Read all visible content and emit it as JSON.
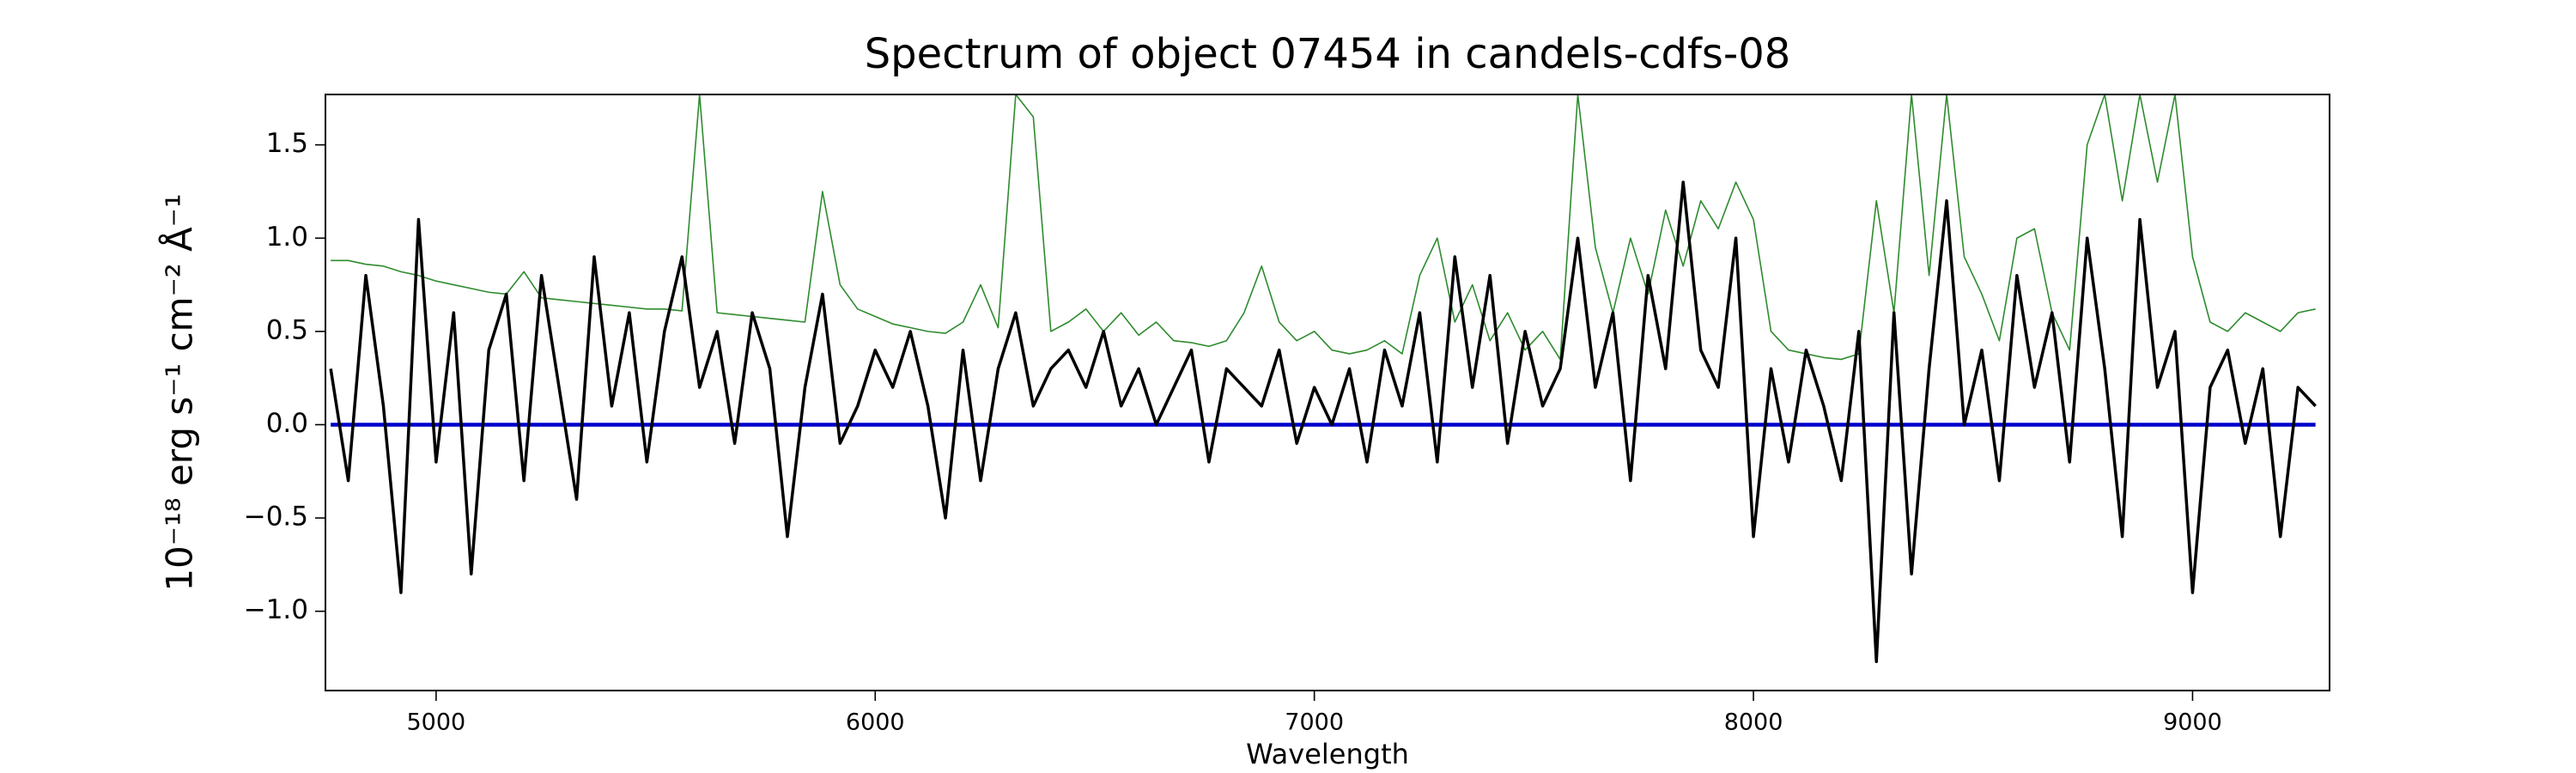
{
  "chart_data": {
    "type": "line",
    "title": "Spectrum of object 07454 in candels-cdfs-08",
    "xlabel": "Wavelength",
    "ylabel": "10⁻¹⁸ erg s⁻¹ cm⁻² Å⁻¹",
    "x": [
      4760,
      4800,
      4840,
      4880,
      4920,
      4960,
      5000,
      5040,
      5080,
      5120,
      5160,
      5200,
      5240,
      5280,
      5320,
      5360,
      5400,
      5440,
      5480,
      5520,
      5560,
      5600,
      5640,
      5680,
      5720,
      5760,
      5800,
      5840,
      5880,
      5920,
      5960,
      6000,
      6040,
      6080,
      6120,
      6160,
      6200,
      6240,
      6280,
      6320,
      6360,
      6400,
      6440,
      6480,
      6520,
      6560,
      6600,
      6640,
      6680,
      6720,
      6760,
      6800,
      6840,
      6880,
      6920,
      6960,
      7000,
      7040,
      7080,
      7120,
      7160,
      7200,
      7240,
      7280,
      7320,
      7360,
      7400,
      7440,
      7480,
      7520,
      7560,
      7600,
      7640,
      7680,
      7720,
      7760,
      7800,
      7840,
      7880,
      7920,
      7960,
      8000,
      8040,
      8080,
      8120,
      8160,
      8200,
      8240,
      8280,
      8320,
      8360,
      8400,
      8440,
      8480,
      8520,
      8560,
      8600,
      8640,
      8680,
      8720,
      8760,
      8800,
      8840,
      8880,
      8920,
      8960,
      9000,
      9040,
      9080,
      9120,
      9160,
      9200,
      9240,
      9280
    ],
    "series": [
      {
        "color": "#2e8b2e",
        "width": 1.6,
        "values": [
          0.88,
          0.88,
          0.86,
          0.85,
          0.82,
          0.8,
          0.77,
          0.75,
          0.73,
          0.71,
          0.7,
          0.82,
          0.68,
          0.67,
          0.66,
          0.65,
          0.64,
          0.63,
          0.62,
          0.62,
          0.61,
          1.77,
          0.6,
          0.59,
          0.58,
          0.57,
          0.56,
          0.55,
          1.25,
          0.75,
          0.62,
          0.58,
          0.54,
          0.52,
          0.5,
          0.49,
          0.55,
          0.75,
          0.52,
          1.77,
          1.65,
          0.5,
          0.55,
          0.62,
          0.5,
          0.6,
          0.48,
          0.55,
          0.45,
          0.44,
          0.42,
          0.45,
          0.6,
          0.85,
          0.55,
          0.45,
          0.5,
          0.4,
          0.38,
          0.4,
          0.45,
          0.38,
          0.8,
          1.0,
          0.55,
          0.75,
          0.45,
          0.6,
          0.4,
          0.5,
          0.35,
          1.77,
          0.95,
          0.6,
          1.0,
          0.7,
          1.15,
          0.85,
          1.2,
          1.05,
          1.3,
          1.1,
          0.5,
          0.4,
          0.38,
          0.36,
          0.35,
          0.38,
          1.2,
          0.6,
          1.77,
          0.8,
          1.77,
          0.9,
          0.7,
          0.45,
          1.0,
          1.05,
          0.6,
          0.4,
          1.5,
          1.77,
          1.2,
          1.77,
          1.3,
          1.77,
          0.9,
          0.55,
          0.5,
          0.6,
          0.55,
          0.5,
          0.6,
          0.62
        ]
      },
      {
        "color": "#0000cc",
        "width": 4.5,
        "values": [
          0,
          0,
          0,
          0,
          0,
          0,
          0,
          0,
          0,
          0,
          0,
          0,
          0,
          0,
          0,
          0,
          0,
          0,
          0,
          0,
          0,
          0,
          0,
          0,
          0,
          0,
          0,
          0,
          0,
          0,
          0,
          0,
          0,
          0,
          0,
          0,
          0,
          0,
          0,
          0,
          0,
          0,
          0,
          0,
          0,
          0,
          0,
          0,
          0,
          0,
          0,
          0,
          0,
          0,
          0,
          0,
          0,
          0,
          0,
          0,
          0,
          0,
          0,
          0,
          0,
          0,
          0,
          0,
          0,
          0,
          0,
          0,
          0,
          0,
          0,
          0,
          0,
          0,
          0,
          0,
          0,
          0,
          0,
          0,
          0,
          0,
          0,
          0,
          0,
          0,
          0,
          0,
          0,
          0,
          0,
          0,
          0,
          0,
          0,
          0,
          0,
          0,
          0,
          0,
          0,
          0,
          0,
          0,
          0,
          0,
          0,
          0,
          0,
          0
        ]
      },
      {
        "color": "#000000",
        "width": 3.5,
        "values": [
          0.3,
          -0.3,
          0.8,
          0.1,
          -0.9,
          1.1,
          -0.2,
          0.6,
          -0.8,
          0.4,
          0.7,
          -0.3,
          0.8,
          0.2,
          -0.4,
          0.9,
          0.1,
          0.6,
          -0.2,
          0.5,
          0.9,
          0.2,
          0.5,
          -0.1,
          0.6,
          0.3,
          -0.6,
          0.2,
          0.7,
          -0.1,
          0.1,
          0.4,
          0.2,
          0.5,
          0.1,
          -0.5,
          0.4,
          -0.3,
          0.3,
          0.6,
          0.1,
          0.3,
          0.4,
          0.2,
          0.5,
          0.1,
          0.3,
          0.0,
          0.2,
          0.4,
          -0.2,
          0.3,
          0.2,
          0.1,
          0.4,
          -0.1,
          0.2,
          0.0,
          0.3,
          -0.2,
          0.4,
          0.1,
          0.6,
          -0.2,
          0.9,
          0.2,
          0.8,
          -0.1,
          0.5,
          0.1,
          0.3,
          1.0,
          0.2,
          0.6,
          -0.3,
          0.8,
          0.3,
          1.3,
          0.4,
          0.2,
          1.0,
          -0.6,
          0.3,
          -0.2,
          0.4,
          0.1,
          -0.3,
          0.5,
          -1.27,
          0.6,
          -0.8,
          0.3,
          1.2,
          0.0,
          0.4,
          -0.3,
          0.8,
          0.2,
          0.6,
          -0.2,
          1.0,
          0.3,
          -0.6,
          1.1,
          0.2,
          0.5,
          -0.9,
          0.2,
          0.4,
          -0.1,
          0.3,
          -0.6,
          0.2,
          0.1
        ]
      }
    ],
    "xlim": [
      4748,
      9312
    ],
    "ylim": [
      -1.425,
      1.77
    ],
    "xticks": [
      5000,
      6000,
      7000,
      8000,
      9000
    ],
    "yticks": [
      {
        "value": -1.0,
        "label": "−1.0"
      },
      {
        "value": -0.5,
        "label": "−0.5"
      },
      {
        "value": 0.0,
        "label": "0.0"
      },
      {
        "value": 0.5,
        "label": "0.5"
      },
      {
        "value": 1.0,
        "label": "1.0"
      },
      {
        "value": 1.5,
        "label": "1.5"
      }
    ],
    "grid": false
  }
}
